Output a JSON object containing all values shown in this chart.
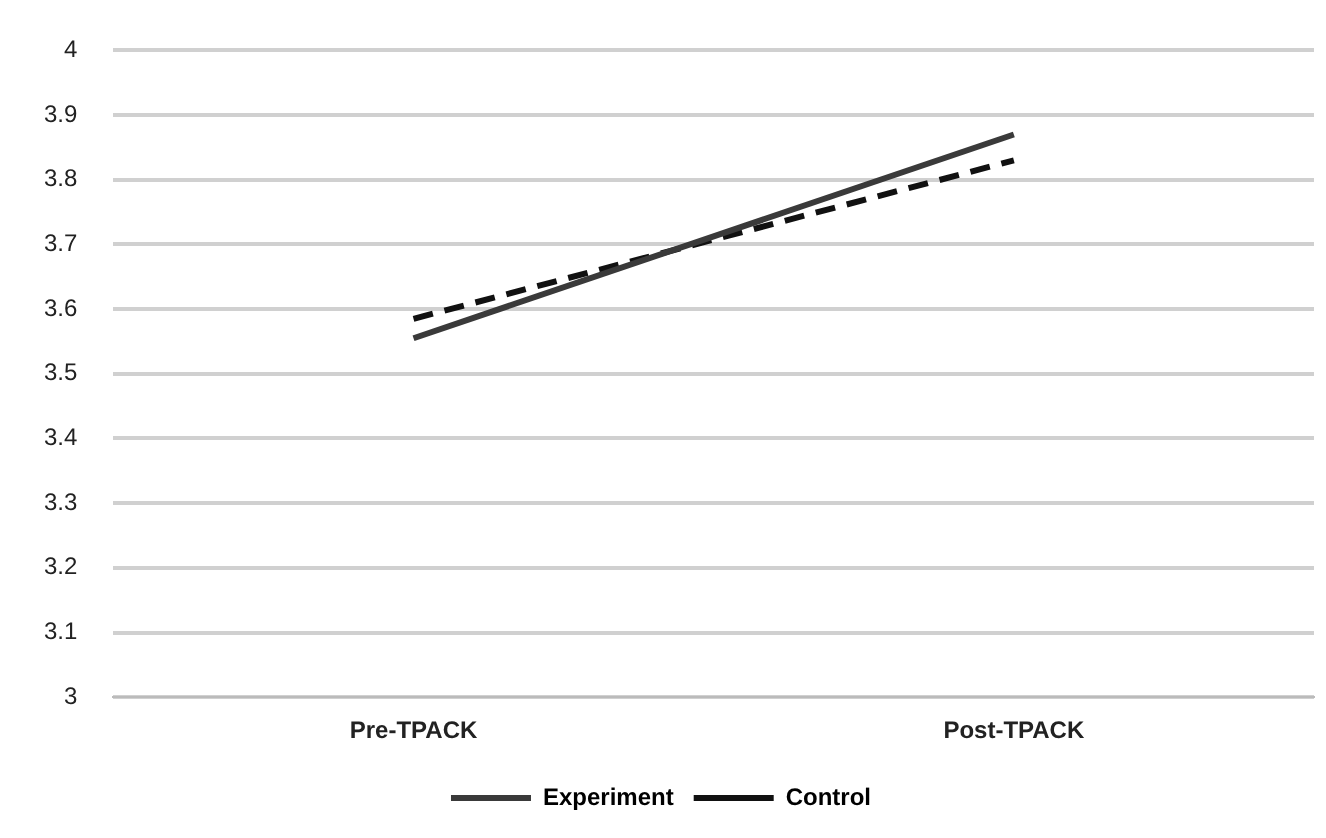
{
  "chart_data": {
    "type": "line",
    "categories": [
      "Pre-TPACK",
      "Post-TPACK"
    ],
    "series": [
      {
        "name": "Experiment",
        "color": "#3a3a3a",
        "values": [
          3.555,
          3.87
        ],
        "line_style": "solid"
      },
      {
        "name": "Control",
        "color": "#111111",
        "values": [
          3.585,
          3.83
        ],
        "line_style": "dashed"
      }
    ],
    "ylim": [
      3,
      4
    ],
    "yticks": [
      3,
      3.1,
      3.2,
      3.3,
      3.4,
      3.5,
      3.6,
      3.7,
      3.8,
      3.9,
      4
    ],
    "grid": "y",
    "legend": "bottom",
    "marker": "none"
  }
}
